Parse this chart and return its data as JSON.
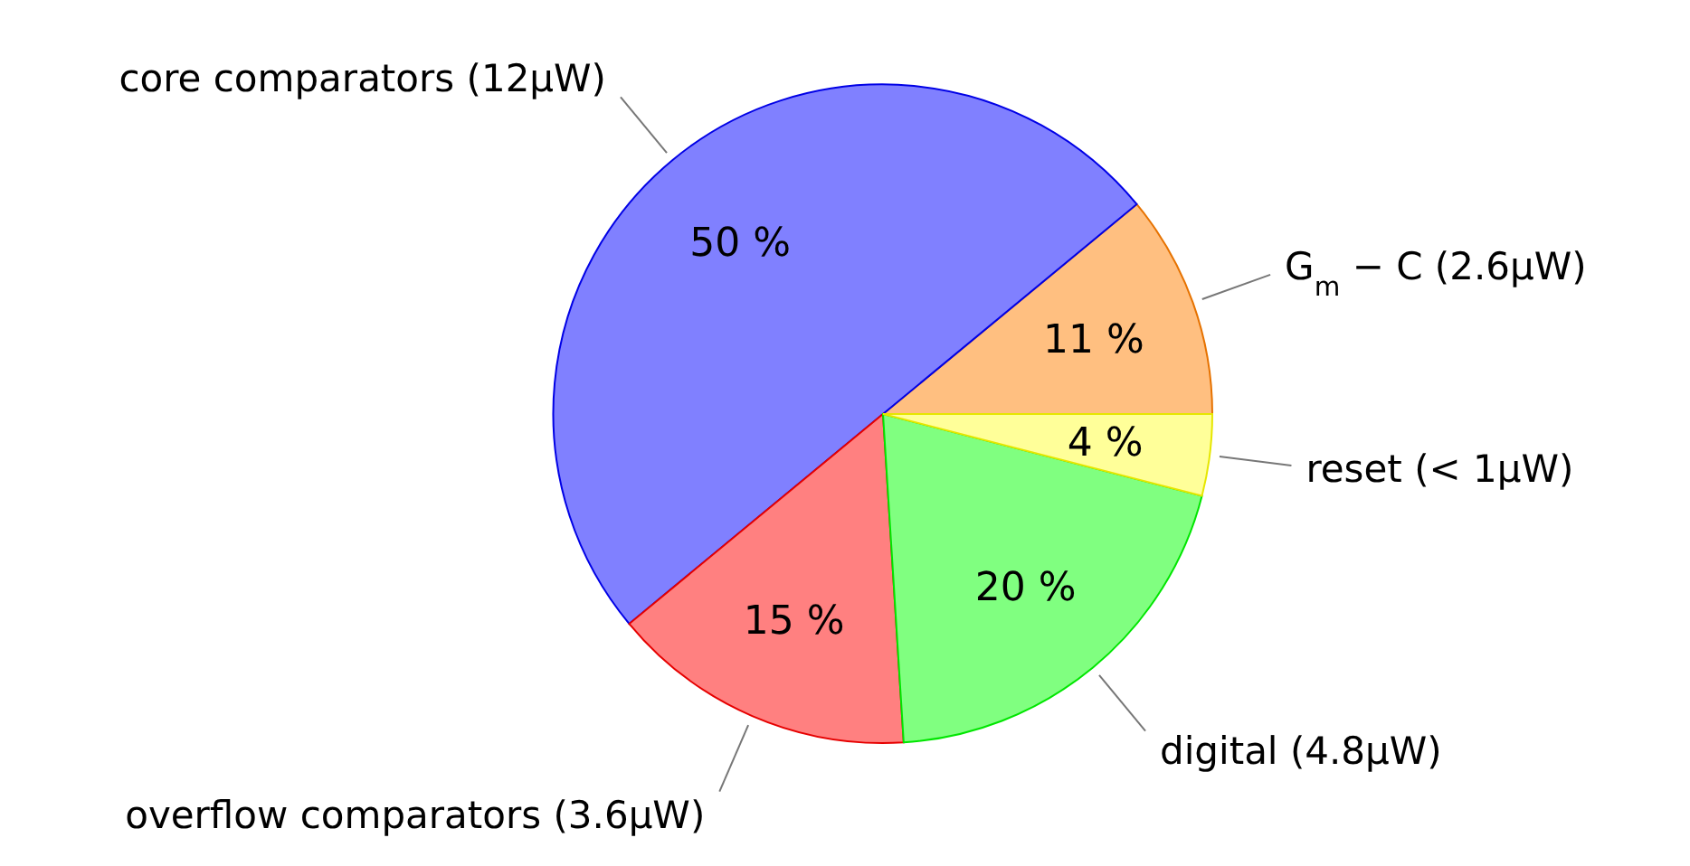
{
  "chart_data": {
    "type": "pie",
    "categories": [
      "G$_{m}$ − C (2.6μW)",
      "core comparators (12μW)",
      "overflow comparators (3.6μW)",
      "digital (4.8μW)",
      "reset (< 1μW)"
    ],
    "values": [
      11,
      50,
      15,
      20,
      4
    ],
    "value_labels": [
      "11 %",
      "50 %",
      "15 %",
      "20 %",
      "4 %"
    ],
    "colors": [
      "#ffbf80",
      "#8080ff",
      "#ff8080",
      "#80ff80",
      "#ffff99"
    ]
  }
}
